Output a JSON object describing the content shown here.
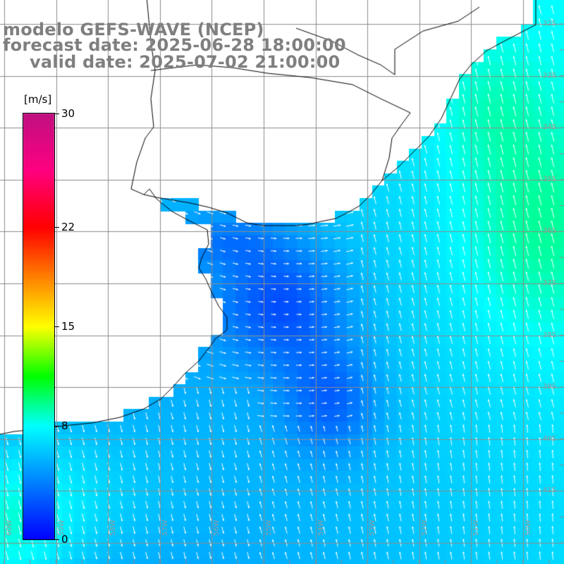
{
  "title": {
    "line1": "modelo GEFS-WAVE (NCEP)",
    "line2": "forecast date: 2025-06-28 18:00:00",
    "line3": "valid date: 2025-07-02 21:00:00"
  },
  "colorbar": {
    "units": "[m/s]",
    "ticks": [
      {
        "label": "30",
        "value": 30
      },
      {
        "label": "22",
        "value": 22
      },
      {
        "label": "15",
        "value": 15
      },
      {
        "label": "8",
        "value": 8
      },
      {
        "label": "0",
        "value": 0
      }
    ],
    "range": [
      0,
      30
    ],
    "stops": [
      {
        "value": 0,
        "color": "#0000ff"
      },
      {
        "value": 4,
        "color": "#0080ff"
      },
      {
        "value": 8,
        "color": "#00ffff"
      },
      {
        "value": 11.5,
        "color": "#00ff00"
      },
      {
        "value": 15,
        "color": "#ffff00"
      },
      {
        "value": 18.5,
        "color": "#ff8000"
      },
      {
        "value": 22,
        "color": "#ff0000"
      },
      {
        "value": 26,
        "color": "#ff0080"
      },
      {
        "value": 30,
        "color": "#c01080"
      }
    ]
  },
  "latitude_labels": [
    "32S",
    "33S",
    "34S",
    "35S",
    "36S",
    "37S",
    "38S",
    "39S",
    "40S",
    "41S"
  ],
  "longitude_labels": [
    "60W",
    "59W",
    "58W",
    "57W",
    "56W",
    "55W",
    "54W",
    "53W",
    "52W",
    "51W",
    "50W"
  ],
  "colors": {
    "land": "#ffffff",
    "grid": "#8c8c8c",
    "coast": "#000000",
    "arrows": "#ffffff",
    "title": "#7f7f7f"
  }
}
